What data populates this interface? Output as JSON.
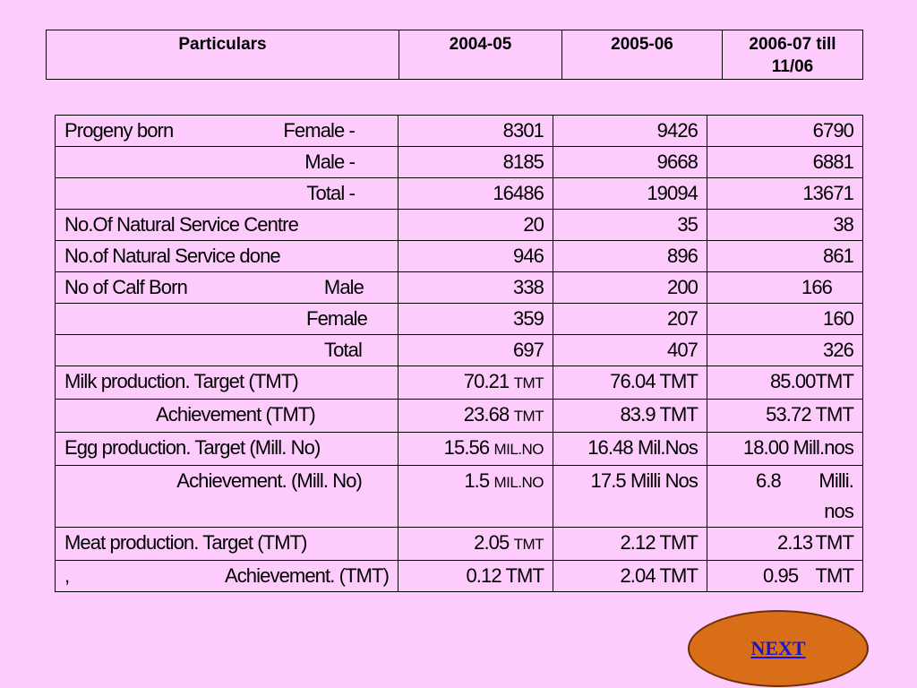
{
  "header": {
    "col1": "Particulars",
    "col2": "2004-05",
    "col3": "2005-06",
    "col4": "2006-07 till 11/06"
  },
  "rows": [
    {
      "label_a": "Progeny born",
      "label_b": "Female -",
      "v1": "8301",
      "v2": "9426",
      "v3": "6790"
    },
    {
      "label": "Male -",
      "v1": "8185",
      "v2": "9668",
      "v3": "6881"
    },
    {
      "label": "Total  -",
      "v1": "16486",
      "v2": "19094",
      "v3": "13671"
    },
    {
      "label": "No.Of Natural Service Centre",
      "v1": "20",
      "v2": "35",
      "v3": "38"
    },
    {
      "label": "No.of Natural Service done",
      "v1": "946",
      "v2": "896",
      "v3": "861"
    },
    {
      "label_a": "No of Calf Born",
      "label_b": "Male",
      "v1": "338",
      "v2": "200",
      "v3": "166"
    },
    {
      "label": "Female",
      "v1": "359",
      "v2": "207",
      "v3": "160"
    },
    {
      "label": "Total",
      "v1": "697",
      "v2": "407",
      "v3": "326"
    },
    {
      "label": "Milk production. Target   (TMT)",
      "v1": "70.21",
      "v1_unit": "TMT",
      "v2": "76.04 TMT",
      "v3": "85.00TMT"
    },
    {
      "label": "Achievement   (TMT)",
      "v1": "23.68",
      "v1_unit": "TMT",
      "v2": "83.9  TMT",
      "v3": "53.72 TMT"
    },
    {
      "label": "Egg production. Target (Mill. No)",
      "v1": "15.56",
      "v1_unit": "MIL.NO",
      "v2": "16.48 Mil.Nos",
      "v3": "18.00 Mill.nos"
    },
    {
      "label": "Achievement.  (Mill. No)",
      "v1": "1.5",
      "v1_unit": "MIL.NO",
      "v2": "17.5   Milli Nos",
      "v3_a": "6.8",
      "v3_b": "Milli.",
      "v3_c": "nos"
    },
    {
      "label": "Meat production.  Target  (TMT)",
      "v1": "2.05",
      "v1_unit": "TMT",
      "v2": "2.12  TMT",
      "v3_a": "2.13",
      "v3_b": "TMT"
    },
    {
      "label_a": ",",
      "label_b": "Achievement. (TMT)",
      "v1": "0.12 TMT",
      "v2": "2.04  TMT",
      "v3_a": "0.95",
      "v3_b": "TMT"
    }
  ],
  "next_button": {
    "label": "NEXT"
  }
}
